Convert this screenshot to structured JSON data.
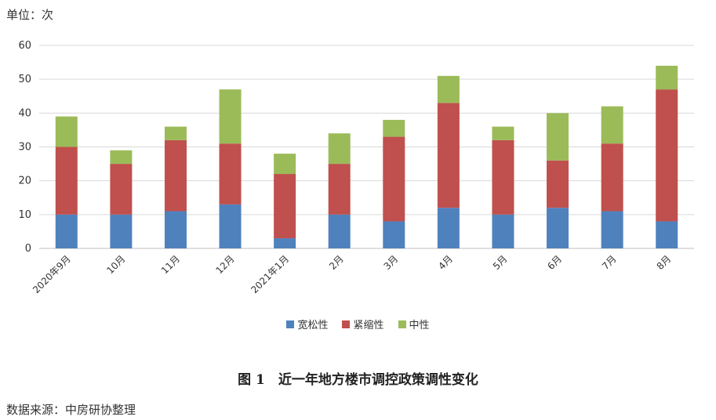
{
  "unit_label": "单位：次",
  "caption": "图 1　近一年地方楼市调控政策调性变化",
  "source": "数据来源：中房研协整理",
  "chart_data": {
    "type": "bar",
    "stacked": true,
    "categories": [
      "2020年9月",
      "10月",
      "11月",
      "12月",
      "2021年1月",
      "2月",
      "3月",
      "4月",
      "5月",
      "6月",
      "7月",
      "8月"
    ],
    "series": [
      {
        "name": "宽松性",
        "color": "#4f81bd",
        "values": [
          10,
          10,
          11,
          13,
          3,
          10,
          8,
          12,
          10,
          12,
          11,
          8
        ]
      },
      {
        "name": "紧缩性",
        "color": "#c0504d",
        "values": [
          20,
          15,
          21,
          18,
          19,
          15,
          25,
          31,
          22,
          14,
          20,
          39
        ]
      },
      {
        "name": "中性",
        "color": "#9bbb59",
        "values": [
          9,
          4,
          4,
          16,
          6,
          9,
          5,
          8,
          4,
          14,
          11,
          7
        ]
      }
    ],
    "ylim": [
      0,
      60
    ],
    "yticks": [
      0,
      10,
      20,
      30,
      40,
      50,
      60
    ],
    "grid": true,
    "legend_position": "bottom"
  }
}
